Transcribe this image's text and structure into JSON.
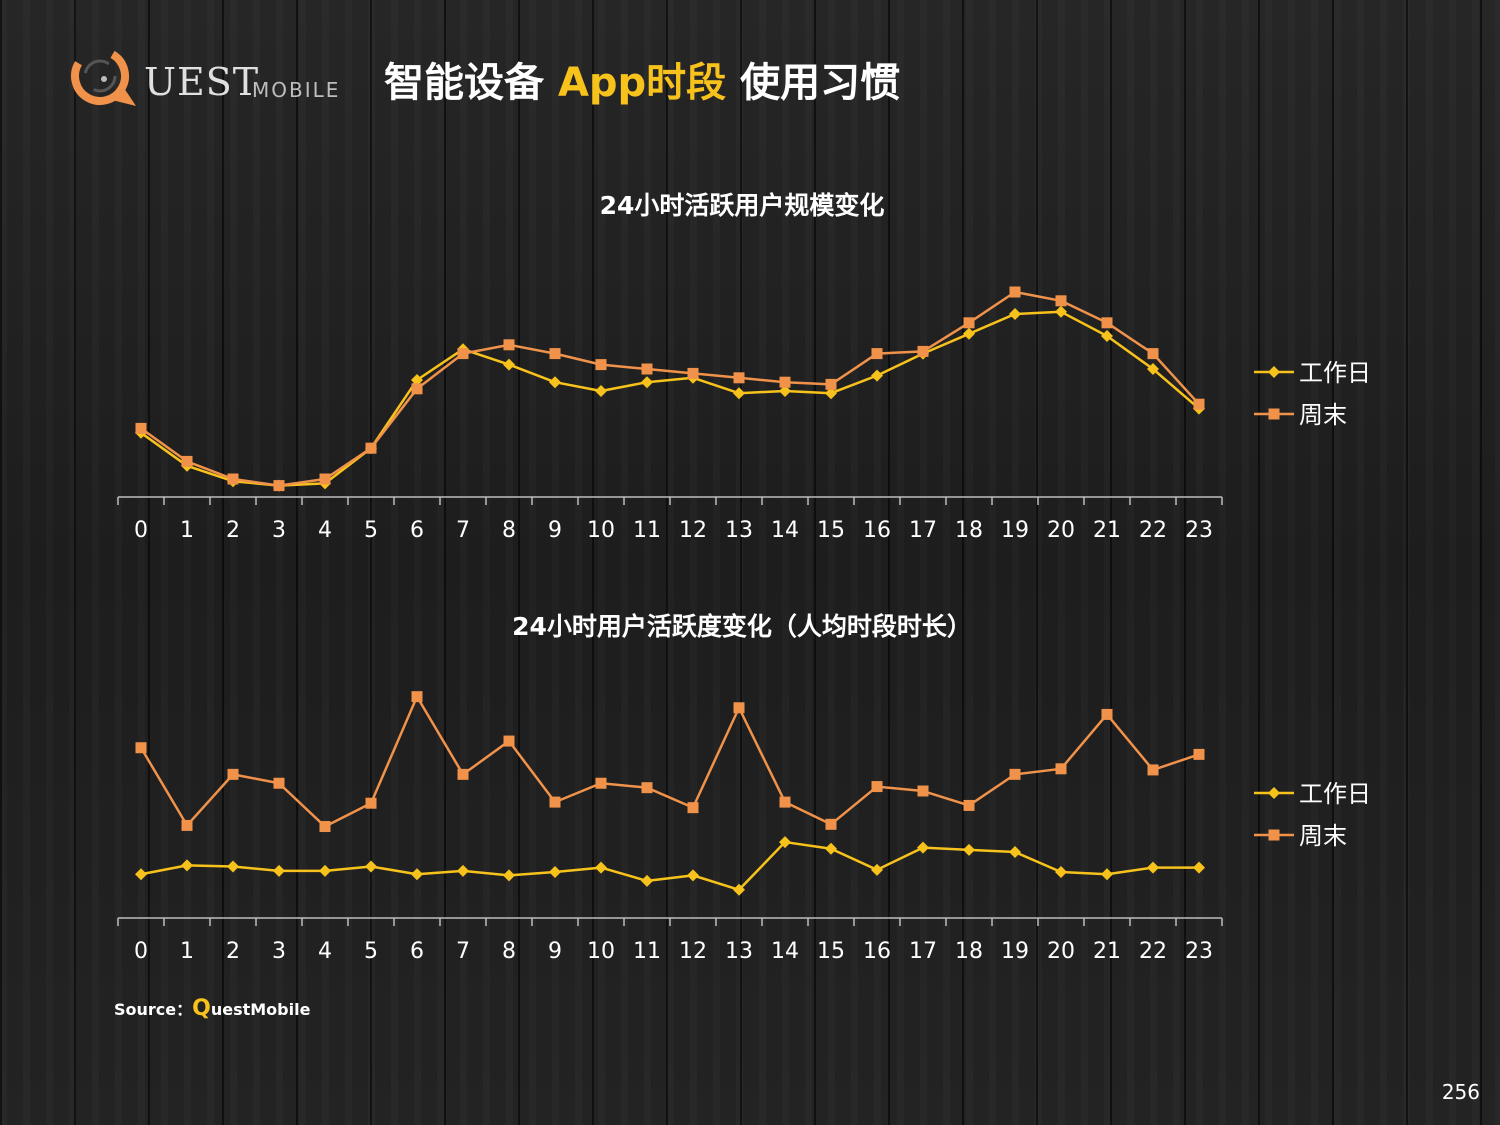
{
  "header": {
    "logo_text": "UEST",
    "logo_sub": "MOBILE",
    "title_part1": "智能设备 ",
    "title_accent": "App时段",
    "title_part2": " 使用习惯"
  },
  "colors": {
    "workday": "#f7c21b",
    "weekend": "#f0924a",
    "accent": "#f7c21b"
  },
  "chart_data": [
    {
      "type": "line",
      "title": "24小时活跃用户规模变化",
      "categories": [
        "0",
        "1",
        "2",
        "3",
        "4",
        "5",
        "6",
        "7",
        "8",
        "9",
        "10",
        "11",
        "12",
        "13",
        "14",
        "15",
        "16",
        "17",
        "18",
        "19",
        "20",
        "21",
        "22",
        "23"
      ],
      "series": [
        {
          "name": "工作日",
          "marker": "diamond",
          "values": [
            26,
            11,
            4,
            2,
            3,
            19,
            50,
            64,
            57,
            49,
            45,
            49,
            51,
            44,
            45,
            44,
            52,
            62,
            71,
            80,
            81,
            70,
            55,
            37
          ]
        },
        {
          "name": "周末",
          "marker": "square",
          "values": [
            28,
            13,
            5,
            2,
            5,
            19,
            46,
            62,
            66,
            62,
            57,
            55,
            53,
            51,
            49,
            48,
            62,
            63,
            76,
            90,
            86,
            76,
            62,
            39
          ]
        }
      ],
      "ylim": [
        0,
        100
      ],
      "grid": false,
      "legend": "right"
    },
    {
      "type": "line",
      "title": "24小时用户活跃度变化（人均时段时长）",
      "categories": [
        "0",
        "1",
        "2",
        "3",
        "4",
        "5",
        "6",
        "7",
        "8",
        "9",
        "10",
        "11",
        "12",
        "13",
        "14",
        "15",
        "16",
        "17",
        "18",
        "19",
        "20",
        "21",
        "22",
        "23"
      ],
      "series": [
        {
          "name": "工作日",
          "marker": "diamond",
          "values": [
            17,
            21,
            20.5,
            18.5,
            18.5,
            20.5,
            17,
            18.5,
            16.5,
            18,
            20,
            14,
            16.5,
            10,
            31.5,
            28.5,
            19,
            29,
            28,
            27,
            18,
            17,
            20,
            20
          ]
        },
        {
          "name": "周末",
          "marker": "square",
          "values": [
            74,
            39,
            62,
            58,
            38.5,
            49,
            97,
            62,
            77,
            49.5,
            58,
            56,
            47,
            92,
            49.5,
            39.5,
            56.5,
            54.5,
            48,
            62,
            64.5,
            89,
            64,
            71
          ]
        }
      ],
      "ylim": [
        0,
        100
      ],
      "grid": false,
      "legend": "right"
    }
  ],
  "footer": {
    "source_label": "Source：",
    "source_q": "Q",
    "source_name": "uestMobile",
    "page_number": "256"
  }
}
